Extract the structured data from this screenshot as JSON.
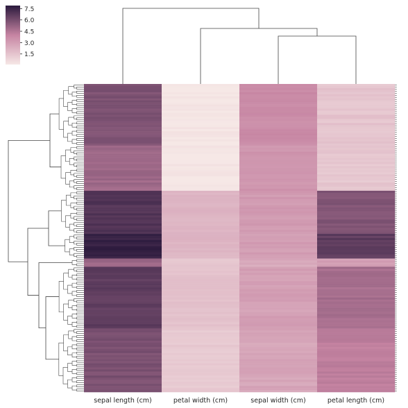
{
  "chart_data": {
    "type": "heatmap",
    "title": "",
    "columns": [
      "sepal length (cm)",
      "petal width (cm)",
      "sepal width (cm)",
      "petal length (cm)"
    ],
    "row_count": 150,
    "colorbar": {
      "ticks": [
        "7.5",
        "6.0",
        "4.5",
        "3.0",
        "1.5"
      ],
      "tick_values": [
        7.5,
        6.0,
        4.5,
        3.0,
        1.5
      ],
      "range": [
        0.1,
        7.9
      ],
      "low_color": "#f6e8e6",
      "mid_color": "#c684a2",
      "high_color": "#2b1a3d"
    },
    "row_clusters": [
      {
        "rows": 30,
        "sepal_length": 5.8,
        "petal_width": 0.2,
        "sepal_width": 3.7,
        "petal_length": 1.5
      },
      {
        "rows": 22,
        "sepal_length": 5.0,
        "petal_width": 0.2,
        "sepal_width": 3.3,
        "petal_length": 1.4
      },
      {
        "rows": 21,
        "sepal_length": 6.9,
        "petal_width": 2.1,
        "sepal_width": 3.1,
        "petal_length": 5.7
      },
      {
        "rows": 12,
        "sepal_length": 7.6,
        "petal_width": 2.1,
        "sepal_width": 3.0,
        "petal_length": 6.6
      },
      {
        "rows": 4,
        "sepal_length": 5.1,
        "petal_width": 1.4,
        "sepal_width": 2.5,
        "petal_length": 3.0
      },
      {
        "rows": 30,
        "sepal_length": 6.6,
        "petal_width": 1.6,
        "sepal_width": 2.9,
        "petal_length": 4.8
      },
      {
        "rows": 31,
        "sepal_length": 5.9,
        "petal_width": 1.3,
        "sepal_width": 2.7,
        "petal_length": 4.2
      }
    ],
    "column_dendrogram": "sepal length (cm) joins last; petal width (cm) joins the cluster of sepal width (cm) and petal length (cm)",
    "row_dendrogram": "two top-level clusters"
  }
}
